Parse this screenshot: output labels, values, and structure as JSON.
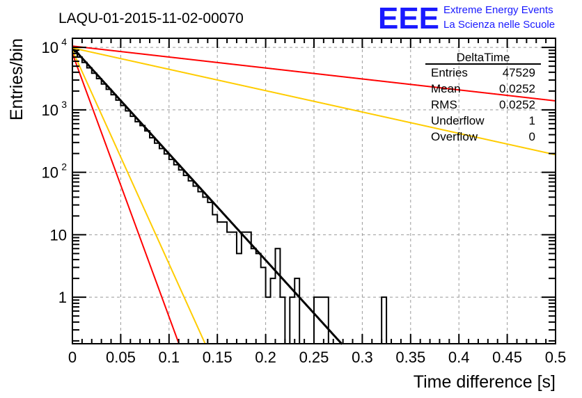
{
  "chart_data": {
    "type": "bar",
    "subtype": "histogram-step",
    "title": "LAQU-01-2015-11-02-00070",
    "xlabel": "Time difference [s]",
    "ylabel": "Entries/bin",
    "xlim": [
      0,
      0.5
    ],
    "ylim": [
      0.18,
      14000
    ],
    "yscale": "log",
    "grid": true,
    "bin_width": 0.005,
    "x_tick_labels": [
      "0",
      "0.05",
      "0.1",
      "0.15",
      "0.2",
      "0.25",
      "0.3",
      "0.35",
      "0.4",
      "0.45",
      "0.5"
    ],
    "x_tick_values": [
      0,
      0.05,
      0.1,
      0.15,
      0.2,
      0.25,
      0.3,
      0.35,
      0.4,
      0.45,
      0.5
    ],
    "y_tick_values": [
      1,
      10,
      100,
      1000,
      10000
    ],
    "y_tick_labels": [
      {
        "base": "1",
        "exp": ""
      },
      {
        "base": "10",
        "exp": ""
      },
      {
        "base": "10",
        "exp": "2"
      },
      {
        "base": "10",
        "exp": "3"
      },
      {
        "base": "10",
        "exp": "4"
      }
    ],
    "values": [
      8540,
      7003,
      5742,
      4709,
      3861,
      3166,
      2596,
      2129,
      1746,
      1432,
      1174,
      963,
      789,
      647,
      560,
      460,
      357,
      293,
      240,
      197,
      161,
      132,
      109,
      89,
      73,
      60,
      49,
      40,
      33,
      21,
      16,
      16,
      11,
      11,
      5,
      11,
      11,
      6,
      5,
      3,
      1,
      2,
      6,
      1,
      0,
      1,
      2,
      0,
      0,
      0,
      1,
      1,
      1,
      0,
      0,
      0,
      0,
      0,
      0,
      0,
      0,
      0,
      0,
      0,
      1,
      0,
      0,
      0,
      0,
      0,
      0,
      0,
      0,
      0,
      0,
      0,
      0,
      0,
      0,
      0,
      0,
      0,
      0,
      0,
      0,
      0,
      0,
      0,
      0,
      0,
      0,
      0,
      0,
      0,
      0,
      0,
      0,
      0,
      0,
      0
    ],
    "functions": [
      {
        "name": "fit",
        "color": "#000000",
        "amplitude": 10000,
        "tau": 0.0255
      },
      {
        "name": "red-fast",
        "color": "#ff0000",
        "amplitude": 8000,
        "tau": 0.0103
      },
      {
        "name": "yellow-fast",
        "color": "#ffcc00",
        "amplitude": 9000,
        "tau": 0.0127
      },
      {
        "name": "red-slow",
        "color": "#ff0000",
        "amplitude": 10500,
        "tau": 0.2475
      },
      {
        "name": "yellow-slow",
        "color": "#ffcc00",
        "amplitude": 9800,
        "tau": 0.127
      }
    ],
    "stats": {
      "title": "DeltaTime",
      "rows": [
        {
          "label": "Entries",
          "value": "47529"
        },
        {
          "label": "Mean",
          "value": "0.0252"
        },
        {
          "label": "RMS",
          "value": "0.0252"
        },
        {
          "label": "Underflow",
          "value": "1"
        },
        {
          "label": "Overflow",
          "value": "0"
        }
      ]
    }
  },
  "logo": {
    "mark": "EEE",
    "line1": "Extreme Energy Events",
    "line2": "La Scienza nelle Scuole",
    "color": "#1a1aff"
  }
}
